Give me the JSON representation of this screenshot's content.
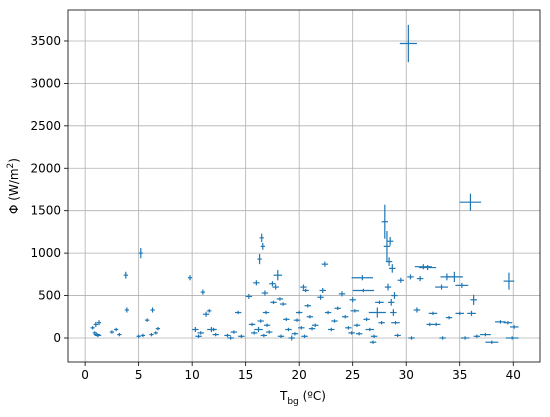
{
  "chart_data": {
    "type": "errorbar_scatter",
    "xlabel": {
      "main": "T",
      "sub": "bg",
      "rest": " (ºC)"
    },
    "ylabel": {
      "main": "Φ (W/m",
      "sup": "2",
      "rest": ")"
    },
    "color": "#1f77b4",
    "grid": true,
    "xlim": [
      -1.6,
      42.5
    ],
    "ylim": [
      -283,
      3865
    ],
    "xticks": [
      0,
      5,
      10,
      15,
      20,
      25,
      30,
      35,
      40
    ],
    "yticks": [
      0,
      500,
      1000,
      1500,
      2000,
      2500,
      3000,
      3500
    ],
    "x": [
      0.7,
      1,
      0.9,
      1.2,
      1.3,
      1.1,
      2.5,
      2.9,
      3.2,
      3.8,
      3.9,
      5.2,
      5.4,
      5.8,
      6.2,
      6.3,
      6.6,
      6.8,
      5.0,
      9.8,
      10.3,
      10.6,
      11,
      11.3,
      11.6,
      11.8,
      12.2,
      12,
      10.8,
      13.3,
      13.6,
      13.9,
      14.3,
      14.6,
      15.3,
      15.6,
      15.8,
      16,
      16.3,
      16.5,
      16.6,
      16.8,
      16.2,
      16.4,
      16.7,
      17,
      17.2,
      16.9,
      17.5,
      17.8,
      18,
      17.6,
      18.2,
      18.5,
      18.8,
      18.3,
      19,
      19.3,
      19.6,
      19.8,
      20,
      20.2,
      20.4,
      20.6,
      20.8,
      21,
      21.2,
      20.5,
      21.5,
      22,
      22.2,
      22.4,
      22.7,
      23,
      23.3,
      23.6,
      24,
      24.3,
      24.6,
      24.9,
      25,
      25.2,
      25.4,
      25.6,
      25.9,
      26,
      26.3,
      26.6,
      26.9,
      27,
      27.3,
      27.5,
      27.7,
      28,
      28.2,
      28.5,
      28.4,
      28.7,
      28.9,
      28.6,
      28.8,
      29,
      29.2,
      28.3,
      29.5,
      30.2,
      30.4,
      30.5,
      31,
      31.3,
      31.6,
      32,
      32.2,
      32.5,
      32.8,
      33.3,
      33.4,
      33.8,
      34,
      34.5,
      35,
      35.2,
      35.5,
      36,
      36.1,
      36.3,
      36.6,
      37.4,
      38,
      38.8,
      39.5,
      39.6,
      39.9,
      40.1
    ],
    "y": [
      120,
      160,
      60,
      30,
      180,
      40,
      70,
      100,
      40,
      740,
      330,
      1000,
      30,
      210,
      40,
      330,
      60,
      110,
      20,
      710,
      100,
      20,
      540,
      280,
      320,
      100,
      40,
      100,
      60,
      30,
      0,
      70,
      300,
      20,
      490,
      160,
      60,
      650,
      930,
      1180,
      1080,
      530,
      100,
      200,
      30,
      150,
      70,
      300,
      640,
      600,
      740,
      420,
      460,
      400,
      220,
      20,
      100,
      0,
      50,
      210,
      300,
      120,
      600,
      560,
      380,
      250,
      110,
      20,
      150,
      480,
      560,
      870,
      300,
      100,
      200,
      350,
      520,
      250,
      120,
      60,
      450,
      320,
      150,
      50,
      710,
      560,
      220,
      100,
      -50,
      20,
      300,
      420,
      180,
      1370,
      1080,
      1140,
      900,
      820,
      500,
      420,
      300,
      180,
      30,
      600,
      680,
      3470,
      720,
      0,
      330,
      700,
      840,
      830,
      160,
      290,
      160,
      600,
      0,
      720,
      240,
      720,
      290,
      620,
      0,
      1600,
      290,
      450,
      20,
      40,
      -50,
      190,
      180,
      670,
      0,
      130
    ],
    "xerr": [
      0.2,
      0.2,
      0.2,
      0.3,
      0.2,
      0.3,
      0.2,
      0.2,
      0.2,
      0.2,
      0.2,
      0.2,
      0.2,
      0.2,
      0.2,
      0.2,
      0.2,
      0.2,
      0.2,
      0.2,
      0.3,
      0.3,
      0.2,
      0.3,
      0.2,
      0.4,
      0.3,
      0.3,
      0.3,
      0.3,
      0.3,
      0.3,
      0.3,
      0.3,
      0.3,
      0.3,
      0.3,
      0.3,
      0.2,
      0.2,
      0.2,
      0.3,
      0.4,
      0.3,
      0.3,
      0.3,
      0.3,
      0.3,
      0.3,
      0.3,
      0.4,
      0.3,
      0.3,
      0.3,
      0.3,
      0.3,
      0.3,
      0.3,
      0.3,
      0.3,
      0.3,
      0.3,
      0.3,
      0.3,
      0.3,
      0.3,
      0.3,
      0.3,
      0.3,
      0.3,
      0.3,
      0.3,
      0.3,
      0.3,
      0.3,
      0.3,
      0.3,
      0.3,
      0.3,
      0.3,
      0.3,
      0.4,
      0.3,
      0.3,
      1.0,
      1.0,
      0.3,
      0.4,
      0.3,
      0.3,
      0.8,
      0.4,
      0.3,
      0.3,
      0.3,
      0.3,
      0.3,
      0.3,
      0.3,
      0.3,
      0.3,
      0.4,
      0.3,
      0.3,
      0.3,
      0.8,
      0.3,
      0.3,
      0.3,
      0.3,
      0.8,
      0.8,
      0.3,
      0.4,
      0.4,
      0.6,
      0.3,
      0.6,
      0.3,
      0.8,
      0.4,
      0.6,
      0.4,
      1.0,
      0.4,
      0.3,
      0.3,
      0.5,
      0.6,
      0.5,
      0.4,
      0.5,
      0.6,
      0.4
    ],
    "yerr": [
      20,
      30,
      20,
      20,
      30,
      20,
      20,
      20,
      20,
      40,
      30,
      60,
      20,
      20,
      20,
      30,
      20,
      20,
      20,
      30,
      30,
      20,
      30,
      30,
      20,
      30,
      20,
      20,
      20,
      20,
      20,
      20,
      20,
      20,
      30,
      20,
      20,
      30,
      60,
      50,
      40,
      30,
      30,
      20,
      20,
      20,
      20,
      20,
      30,
      30,
      60,
      20,
      20,
      20,
      20,
      20,
      20,
      30,
      20,
      20,
      20,
      20,
      30,
      20,
      20,
      20,
      20,
      20,
      20,
      30,
      30,
      30,
      20,
      20,
      20,
      20,
      30,
      20,
      20,
      20,
      30,
      20,
      20,
      20,
      30,
      20,
      20,
      20,
      20,
      20,
      60,
      20,
      20,
      200,
      180,
      50,
      50,
      50,
      40,
      40,
      40,
      20,
      20,
      40,
      30,
      220,
      30,
      20,
      30,
      30,
      30,
      30,
      20,
      20,
      20,
      30,
      20,
      40,
      20,
      60,
      20,
      30,
      20,
      100,
      30,
      60,
      20,
      20,
      20,
      20,
      20,
      100,
      20,
      20
    ]
  }
}
